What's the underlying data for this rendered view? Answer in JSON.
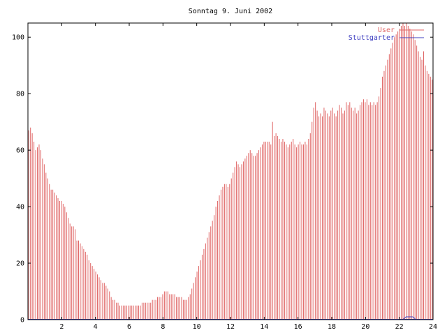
{
  "chart_data": {
    "type": "bar",
    "title": "Sonntag 9. Juni 2002",
    "xlabel": "",
    "ylabel": "",
    "xlim": [
      0,
      24
    ],
    "ylim": [
      0,
      105
    ],
    "x_ticks": [
      2,
      4,
      6,
      8,
      10,
      12,
      14,
      16,
      18,
      20,
      22,
      24
    ],
    "x_tick_labels": [
      "2",
      "4",
      "6",
      "8",
      "10",
      "12",
      "14",
      "16",
      "18",
      "20",
      "22",
      "24"
    ],
    "y_ticks": [
      0,
      20,
      40,
      60,
      80,
      100
    ],
    "y_tick_labels": [
      "0",
      "20",
      "40",
      "60",
      "80",
      "100"
    ],
    "grid": false,
    "legend": "top-right",
    "series": [
      {
        "name": "User",
        "color": "#e06666",
        "values": [
          67,
          68,
          66,
          63,
          60,
          61,
          62,
          60,
          57,
          55,
          52,
          50,
          48,
          46,
          46,
          45,
          44,
          43,
          42,
          42,
          41,
          40,
          38,
          36,
          34,
          33,
          33,
          32,
          28,
          28,
          27,
          26,
          25,
          24,
          23,
          21,
          20,
          19,
          18,
          17,
          16,
          15,
          14,
          13,
          13,
          12,
          11,
          10,
          8,
          7,
          7,
          6,
          6,
          5,
          5,
          5,
          5,
          5,
          5,
          5,
          5,
          5,
          5,
          5,
          5,
          5,
          6,
          6,
          6,
          6,
          6,
          6,
          7,
          7,
          7,
          8,
          8,
          8,
          9,
          10,
          10,
          10,
          9,
          9,
          9,
          9,
          8,
          8,
          8,
          8,
          7,
          7,
          7,
          8,
          9,
          11,
          13,
          15,
          17,
          19,
          21,
          23,
          25,
          27,
          29,
          31,
          33,
          35,
          37,
          40,
          42,
          44,
          46,
          47,
          48,
          48,
          47,
          48,
          50,
          52,
          54,
          56,
          55,
          54,
          55,
          56,
          57,
          58,
          59,
          60,
          59,
          58,
          58,
          59,
          60,
          61,
          62,
          63,
          63,
          63,
          63,
          62,
          70,
          65,
          66,
          65,
          64,
          63,
          64,
          63,
          62,
          61,
          62,
          63,
          64,
          62,
          61,
          62,
          63,
          62,
          62,
          63,
          62,
          64,
          66,
          70,
          75,
          77,
          74,
          72,
          73,
          72,
          75,
          74,
          73,
          72,
          74,
          75,
          73,
          72,
          74,
          76,
          75,
          73,
          74,
          77,
          76,
          77,
          75,
          74,
          75,
          73,
          74,
          76,
          77,
          78,
          77,
          78,
          76,
          77,
          76,
          77,
          76,
          77,
          79,
          82,
          86,
          88,
          90,
          92,
          94,
          96,
          98,
          100,
          101,
          102,
          103,
          104,
          105,
          104,
          105,
          104,
          103,
          102,
          101,
          99,
          97,
          95,
          93,
          92,
          95,
          90,
          88,
          87,
          86,
          85
        ]
      },
      {
        "name": "Stuttgarter",
        "color": "#4040c0",
        "points": [
          [
            22.2,
            0
          ],
          [
            22.4,
            1
          ],
          [
            22.8,
            1
          ],
          [
            23.0,
            0
          ]
        ]
      }
    ]
  }
}
